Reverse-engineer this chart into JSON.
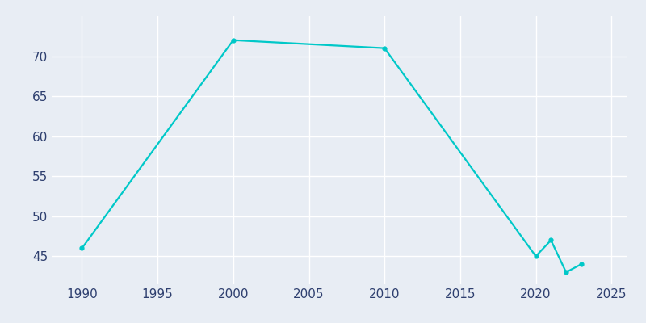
{
  "years": [
    1990,
    2000,
    2010,
    2020,
    2021,
    2022,
    2023
  ],
  "population": [
    46,
    72,
    71,
    45,
    47,
    43,
    44
  ],
  "line_color": "#00C8C8",
  "fig_bg_color": "#E8EDF4",
  "plot_bg_color": "#E8EDF4",
  "xlim": [
    1988,
    2026
  ],
  "ylim": [
    41.5,
    75
  ],
  "xticks": [
    1990,
    1995,
    2000,
    2005,
    2010,
    2015,
    2020,
    2025
  ],
  "yticks": [
    45,
    50,
    55,
    60,
    65,
    70
  ],
  "grid_color": "#ffffff",
  "line_width": 1.6,
  "marker": "o",
  "marker_size": 3.5,
  "tick_label_color": "#2E3F6F",
  "tick_label_size": 11
}
